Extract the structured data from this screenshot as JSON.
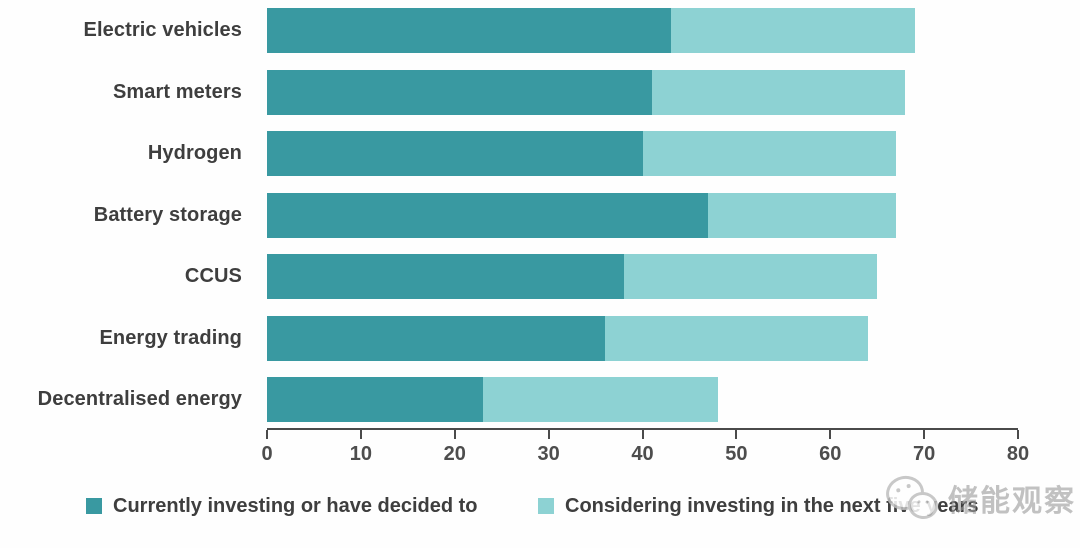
{
  "chart_data": {
    "type": "bar",
    "orientation": "horizontal",
    "stacked": true,
    "title": "",
    "xlabel": "",
    "ylabel": "",
    "categories": [
      "Electric vehicles",
      "Smart meters",
      "Hydrogen",
      "Battery storage",
      "CCUS",
      "Energy trading",
      "Decentralised energy"
    ],
    "series": [
      {
        "name": "Currently investing or have decided to",
        "color": "#3999a1",
        "values": [
          43,
          41,
          40,
          47,
          38,
          36,
          23
        ]
      },
      {
        "name": "Considering investing in the next five years",
        "color": "#8dd2d3",
        "values": [
          26,
          27,
          27,
          20,
          27,
          28,
          25
        ]
      }
    ],
    "totals": [
      69,
      68,
      67,
      67,
      65,
      64,
      48
    ],
    "xlim": [
      0,
      80
    ],
    "xticks": [
      0,
      10,
      20,
      30,
      40,
      50,
      60,
      70,
      80
    ],
    "grid": false,
    "legend_position": "bottom"
  },
  "colors": {
    "series_dark": "#3999a1",
    "series_light": "#8dd2d3",
    "axis": "#4a4a4a",
    "label_text": "#3e3e3e",
    "background": "#fefefe"
  },
  "watermark": {
    "text": "储能观察",
    "icon": "wechat-logo-icon"
  }
}
